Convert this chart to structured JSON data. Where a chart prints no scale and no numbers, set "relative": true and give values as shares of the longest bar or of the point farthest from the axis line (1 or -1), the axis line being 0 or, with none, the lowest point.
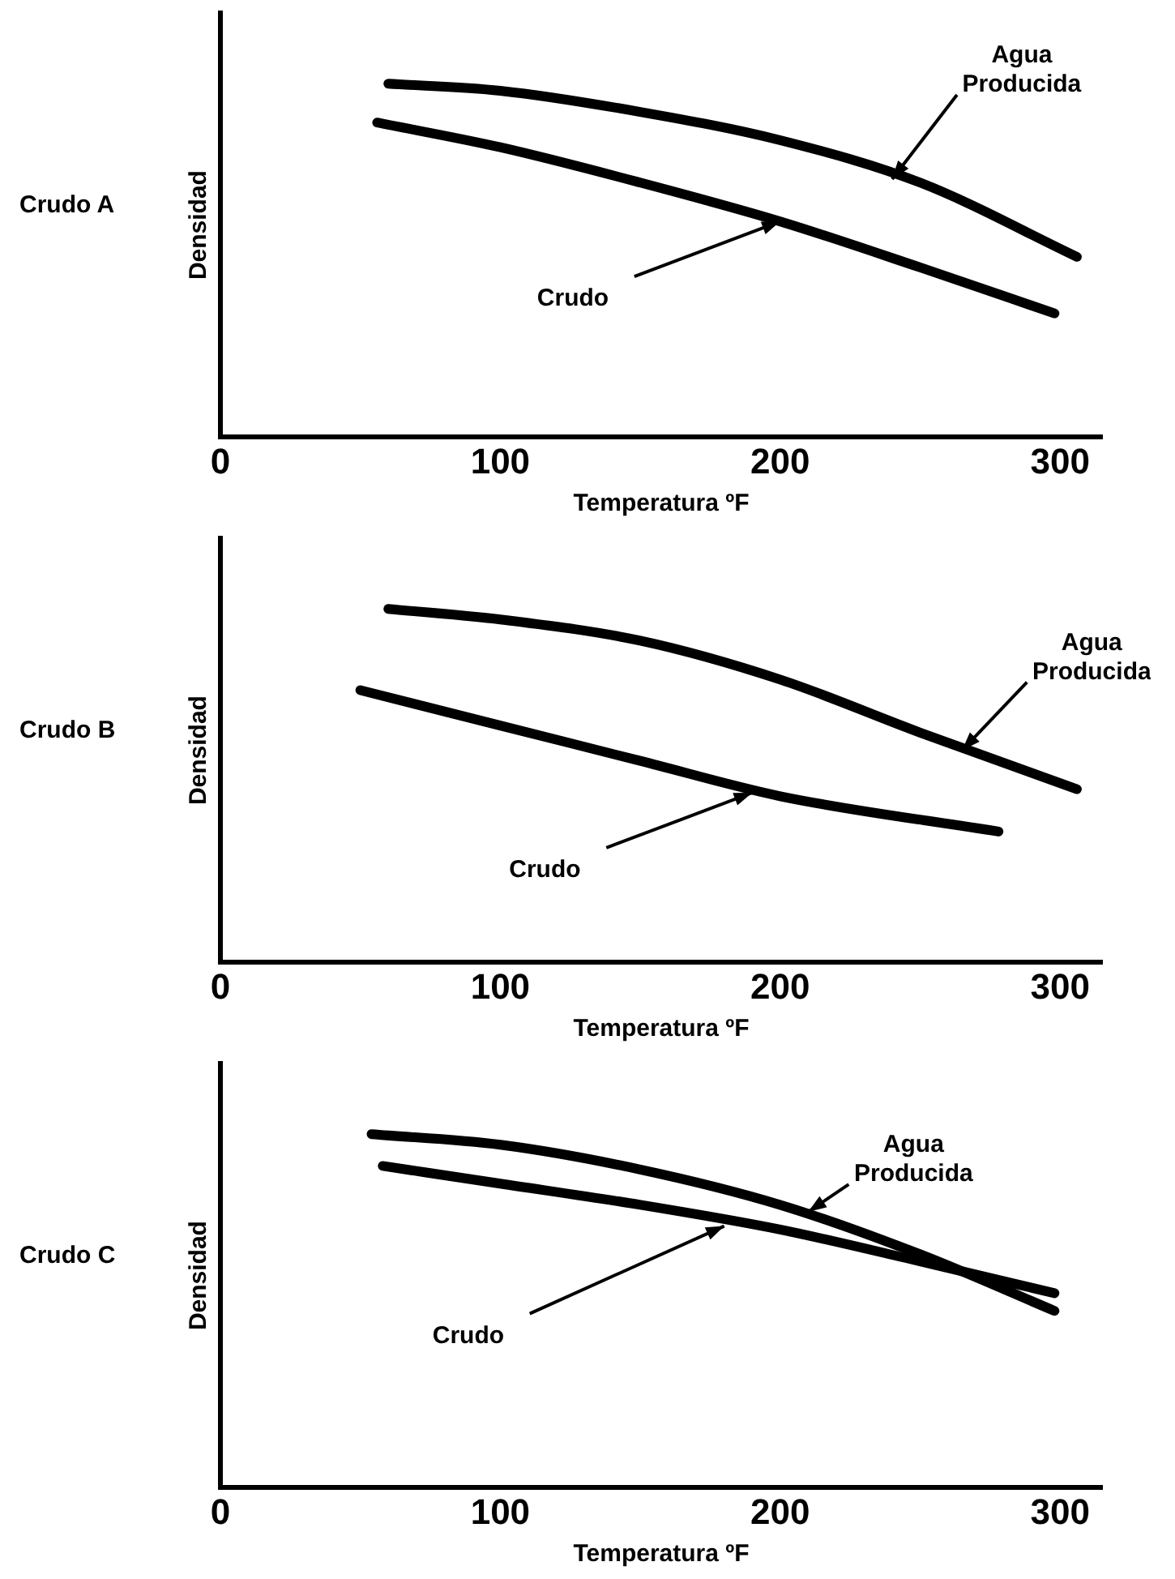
{
  "chart_data": [
    {
      "type": "line",
      "title": "Crudo A",
      "xlabel": "Temperatura ºF",
      "ylabel": "Densidad",
      "relative": true,
      "xlim": [
        0,
        315
      ],
      "xticks": [
        0,
        100,
        200,
        300
      ],
      "grid": false,
      "legend": false,
      "marker": "none",
      "series": [
        {
          "color": "#000000",
          "x": [
            60,
            100,
            150,
            200,
            250,
            306
          ],
          "values": [
            1.0,
            0.98,
            0.92,
            0.84,
            0.72,
            0.51
          ]
        },
        {
          "color": "#000000",
          "x": [
            56,
            100,
            150,
            200,
            250,
            298
          ],
          "values": [
            0.89,
            0.82,
            0.72,
            0.61,
            0.48,
            0.35
          ]
        }
      ],
      "annotations": [
        {
          "text": "Agua Producida",
          "x": 240,
          "y": 0.73
        },
        {
          "text": "Crudo",
          "x": 200,
          "y": 0.61
        }
      ]
    },
    {
      "type": "line",
      "title": "Crudo B",
      "xlabel": "Temperatura ºF",
      "ylabel": "Densidad",
      "relative": true,
      "xlim": [
        0,
        315
      ],
      "xticks": [
        0,
        100,
        200,
        300
      ],
      "grid": false,
      "legend": false,
      "marker": "none",
      "series": [
        {
          "color": "#000000",
          "x": [
            60,
            100,
            150,
            200,
            250,
            306
          ],
          "values": [
            1.0,
            0.97,
            0.91,
            0.8,
            0.65,
            0.49
          ]
        },
        {
          "color": "#000000",
          "x": [
            50,
            100,
            150,
            200,
            278
          ],
          "values": [
            0.77,
            0.67,
            0.57,
            0.47,
            0.37
          ]
        }
      ],
      "annotations": [
        {
          "text": "Agua Producida",
          "x": 265,
          "y": 0.6
        },
        {
          "text": "Crudo",
          "x": 190,
          "y": 0.48
        }
      ]
    },
    {
      "type": "line",
      "title": "Crudo C",
      "xlabel": "Temperatura ºF",
      "ylabel": "Densidad",
      "relative": true,
      "xlim": [
        0,
        315
      ],
      "xticks": [
        0,
        100,
        200,
        300
      ],
      "grid": false,
      "legend": false,
      "marker": "none",
      "series": [
        {
          "color": "#000000",
          "x": [
            54,
            100,
            150,
            200,
            250,
            298
          ],
          "values": [
            1.0,
            0.97,
            0.9,
            0.8,
            0.66,
            0.5
          ]
        },
        {
          "color": "#000000",
          "x": [
            58,
            100,
            150,
            200,
            250,
            298
          ],
          "values": [
            0.91,
            0.86,
            0.8,
            0.73,
            0.64,
            0.55
          ]
        }
      ],
      "annotations": [
        {
          "text": "Agua Producida",
          "x": 210,
          "y": 0.78
        },
        {
          "text": "Crudo",
          "x": 180,
          "y": 0.74
        }
      ]
    }
  ]
}
